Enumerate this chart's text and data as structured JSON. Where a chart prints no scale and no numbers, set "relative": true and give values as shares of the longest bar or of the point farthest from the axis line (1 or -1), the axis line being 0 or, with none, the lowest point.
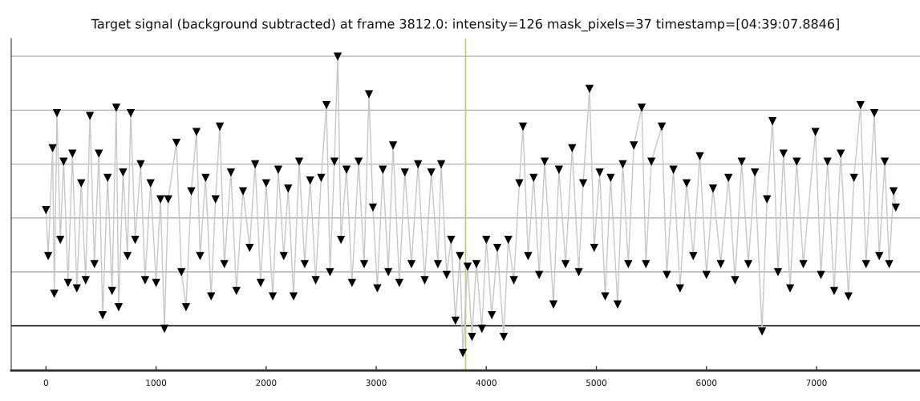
{
  "chart_data": {
    "type": "line",
    "title": "Target signal (background subtracted) at frame 3812.0: intensity=126 mask_pixels=37 timestamp=[04:39:07.8846]",
    "relative": true,
    "xlim": [
      -316,
      7940
    ],
    "xticks": [
      0,
      1000,
      2000,
      3000,
      4000,
      5000,
      6000,
      7000
    ],
    "grid": "y",
    "marker": "triangle",
    "line_style": "solid",
    "ref_lines": [
      {
        "axis": "y",
        "value": 0,
        "color": "#000000"
      },
      {
        "axis": "x",
        "value": 3812,
        "color": "#c8c47a"
      }
    ],
    "x": [
      0,
      20,
      60,
      75,
      99,
      130,
      160,
      200,
      240,
      280,
      320,
      360,
      399,
      440,
      480,
      515,
      560,
      600,
      638,
      660,
      700,
      740,
      770,
      810,
      860,
      900,
      950,
      1000,
      1040,
      1076,
      1110,
      1185,
      1230,
      1272,
      1320,
      1367,
      1400,
      1450,
      1500,
      1540,
      1579,
      1620,
      1680,
      1730,
      1790,
      1850,
      1900,
      1950,
      2000,
      2060,
      2110,
      2160,
      2200,
      2249,
      2300,
      2350,
      2400,
      2450,
      2500,
      2548,
      2580,
      2620,
      2650,
      2680,
      2730,
      2780,
      2840,
      2890,
      2934,
      2970,
      3010,
      3060,
      3110,
      3153,
      3210,
      3260,
      3320,
      3380,
      3440,
      3500,
      3560,
      3590,
      3640,
      3680,
      3720,
      3760,
      3787,
      3830,
      3870,
      3910,
      3960,
      4000,
      4050,
      4100,
      4158,
      4200,
      4250,
      4300,
      4333,
      4380,
      4430,
      4480,
      4530,
      4610,
      4660,
      4720,
      4780,
      4840,
      4880,
      4938,
      4980,
      5030,
      5080,
      5130,
      5193,
      5240,
      5290,
      5340,
      5412,
      5450,
      5500,
      5594,
      5640,
      5700,
      5760,
      5820,
      5880,
      5940,
      6000,
      6060,
      6130,
      6200,
      6260,
      6320,
      6380,
      6440,
      6505,
      6550,
      6600,
      6650,
      6700,
      6760,
      6820,
      6880,
      6990,
      7040,
      7100,
      7160,
      7220,
      7290,
      7340,
      7400,
      7450,
      7525,
      7570,
      7620,
      7660,
      7700,
      7720
    ],
    "series": [
      {
        "color": "#000000",
        "values": [
          0.43,
          0.26,
          0.66,
          0.12,
          0.79,
          0.32,
          0.61,
          0.16,
          0.64,
          0.14,
          0.53,
          0.17,
          0.78,
          0.23,
          0.64,
          0.04,
          0.55,
          0.13,
          0.81,
          0.07,
          0.57,
          0.26,
          0.79,
          0.32,
          0.6,
          0.17,
          0.53,
          0.16,
          0.47,
          -0.01,
          0.47,
          0.68,
          0.2,
          0.07,
          0.5,
          0.72,
          0.26,
          0.55,
          0.11,
          0.47,
          0.74,
          0.23,
          0.57,
          0.13,
          0.5,
          0.29,
          0.6,
          0.16,
          0.53,
          0.11,
          0.58,
          0.26,
          0.51,
          0.11,
          0.61,
          0.23,
          0.54,
          0.17,
          0.55,
          0.82,
          0.2,
          0.61,
          1.0,
          0.32,
          0.58,
          0.16,
          0.61,
          0.23,
          0.86,
          0.44,
          0.14,
          0.58,
          0.2,
          0.67,
          0.16,
          0.57,
          0.23,
          0.6,
          0.17,
          0.57,
          0.23,
          0.6,
          0.19,
          0.32,
          0.02,
          0.26,
          -0.1,
          0.22,
          -0.04,
          0.23,
          -0.01,
          0.32,
          0.04,
          0.29,
          -0.04,
          0.32,
          0.17,
          0.53,
          0.74,
          0.26,
          0.55,
          0.19,
          0.61,
          0.08,
          0.58,
          0.23,
          0.66,
          0.2,
          0.53,
          0.88,
          0.29,
          0.57,
          0.11,
          0.55,
          0.08,
          0.6,
          0.23,
          0.67,
          0.81,
          0.23,
          0.61,
          0.74,
          0.19,
          0.58,
          0.14,
          0.53,
          0.26,
          0.63,
          0.19,
          0.51,
          0.23,
          0.55,
          0.17,
          0.61,
          0.23,
          0.57,
          -0.02,
          0.47,
          0.76,
          0.2,
          0.64,
          0.14,
          0.61,
          0.23,
          0.72,
          0.19,
          0.61,
          0.13,
          0.64,
          0.11,
          0.55,
          0.82,
          0.23,
          0.79,
          0.26,
          0.61,
          0.23,
          0.5,
          0.44
        ]
      }
    ]
  }
}
